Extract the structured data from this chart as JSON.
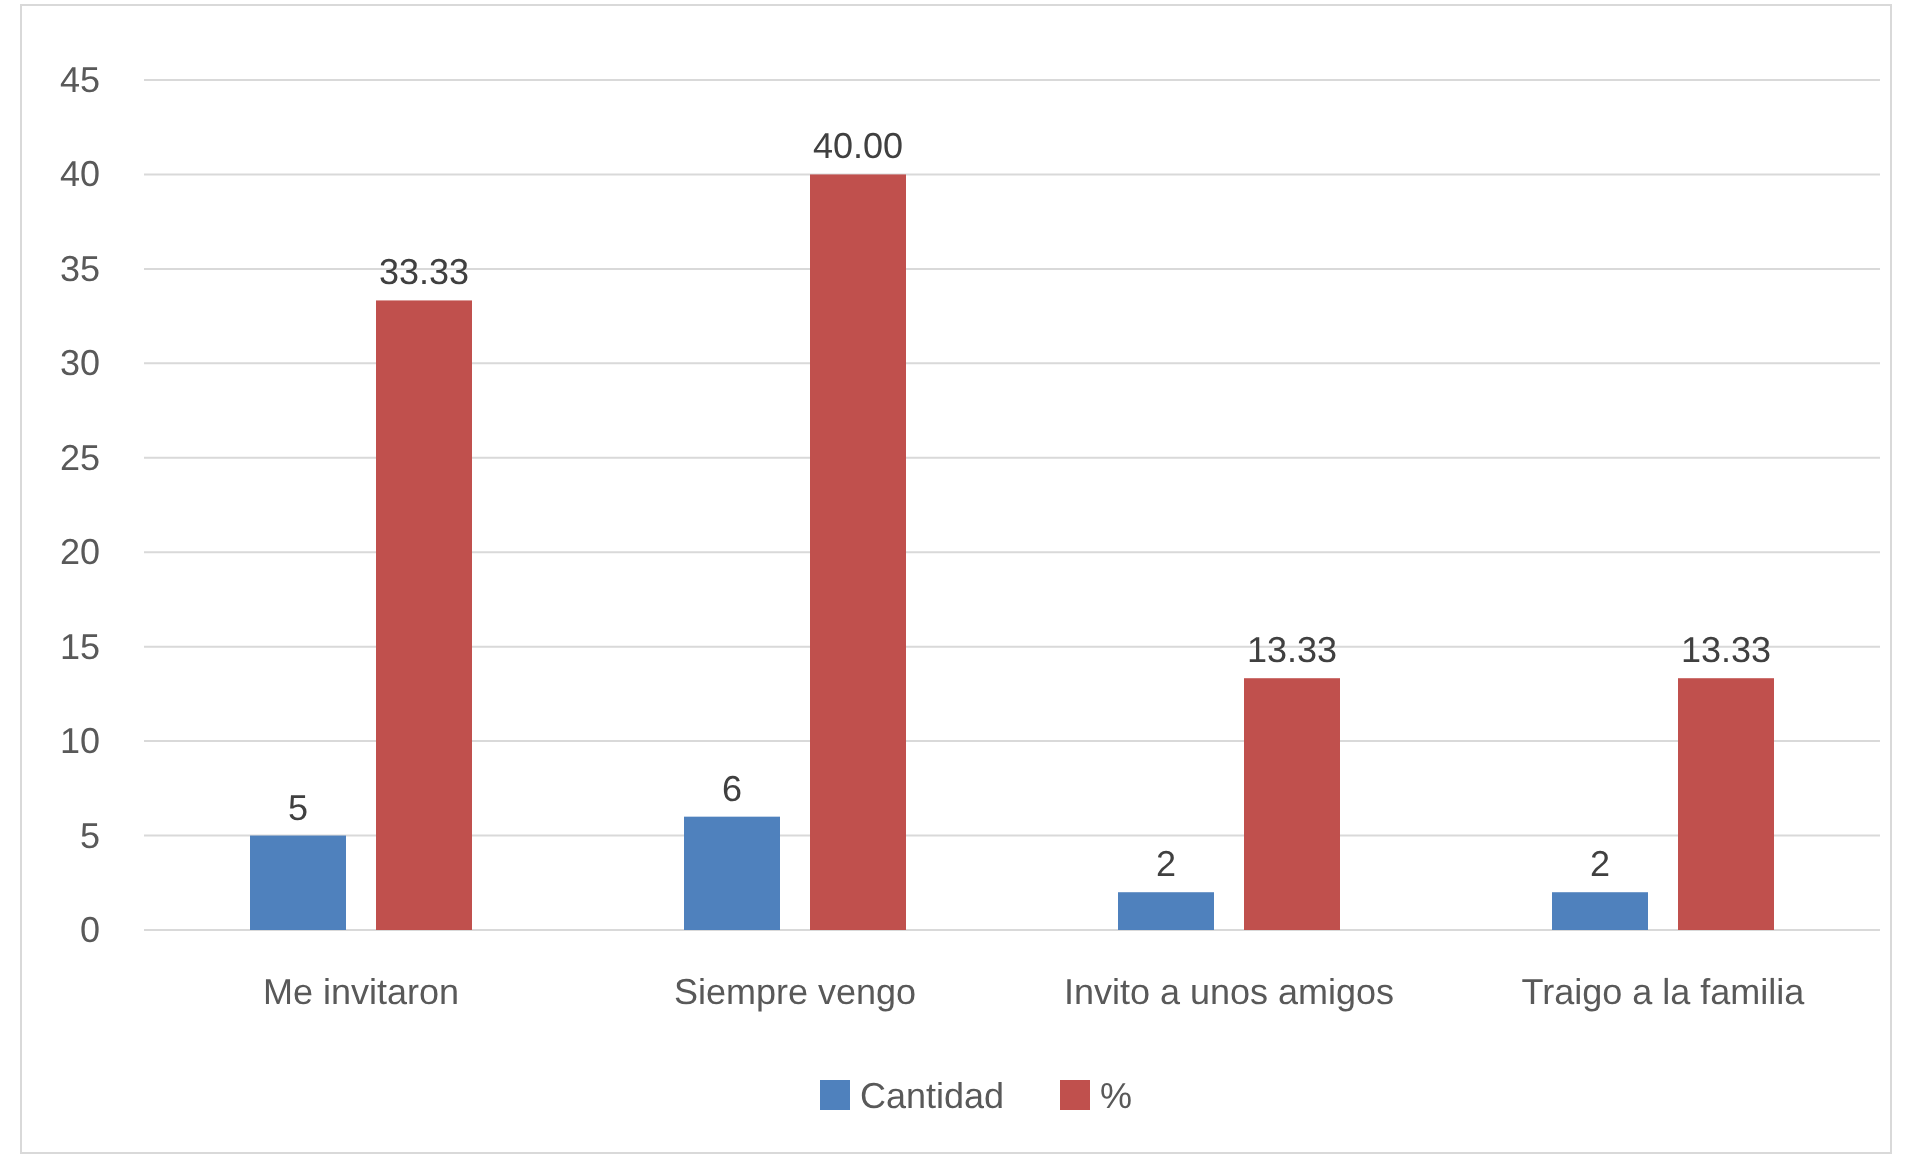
{
  "chart_data": {
    "type": "bar",
    "categories": [
      "Me invitaron",
      "Siempre vengo",
      "Invito a unos amigos",
      "Traigo a la familia"
    ],
    "series": [
      {
        "name": "Cantidad",
        "color": "#4f81bd",
        "values": [
          5,
          6,
          2,
          2
        ],
        "value_labels": [
          "5",
          "6",
          "2",
          "2"
        ]
      },
      {
        "name": "%",
        "color": "#c0504d",
        "values": [
          33.33,
          40.0,
          13.33,
          13.33
        ],
        "value_labels": [
          "33.33",
          "40.00",
          "13.33",
          "13.33"
        ]
      }
    ],
    "ylim": [
      0,
      45
    ],
    "yticks": [
      0,
      5,
      10,
      15,
      20,
      25,
      30,
      35,
      40,
      45
    ],
    "grid": "y",
    "legend": "bottom"
  }
}
